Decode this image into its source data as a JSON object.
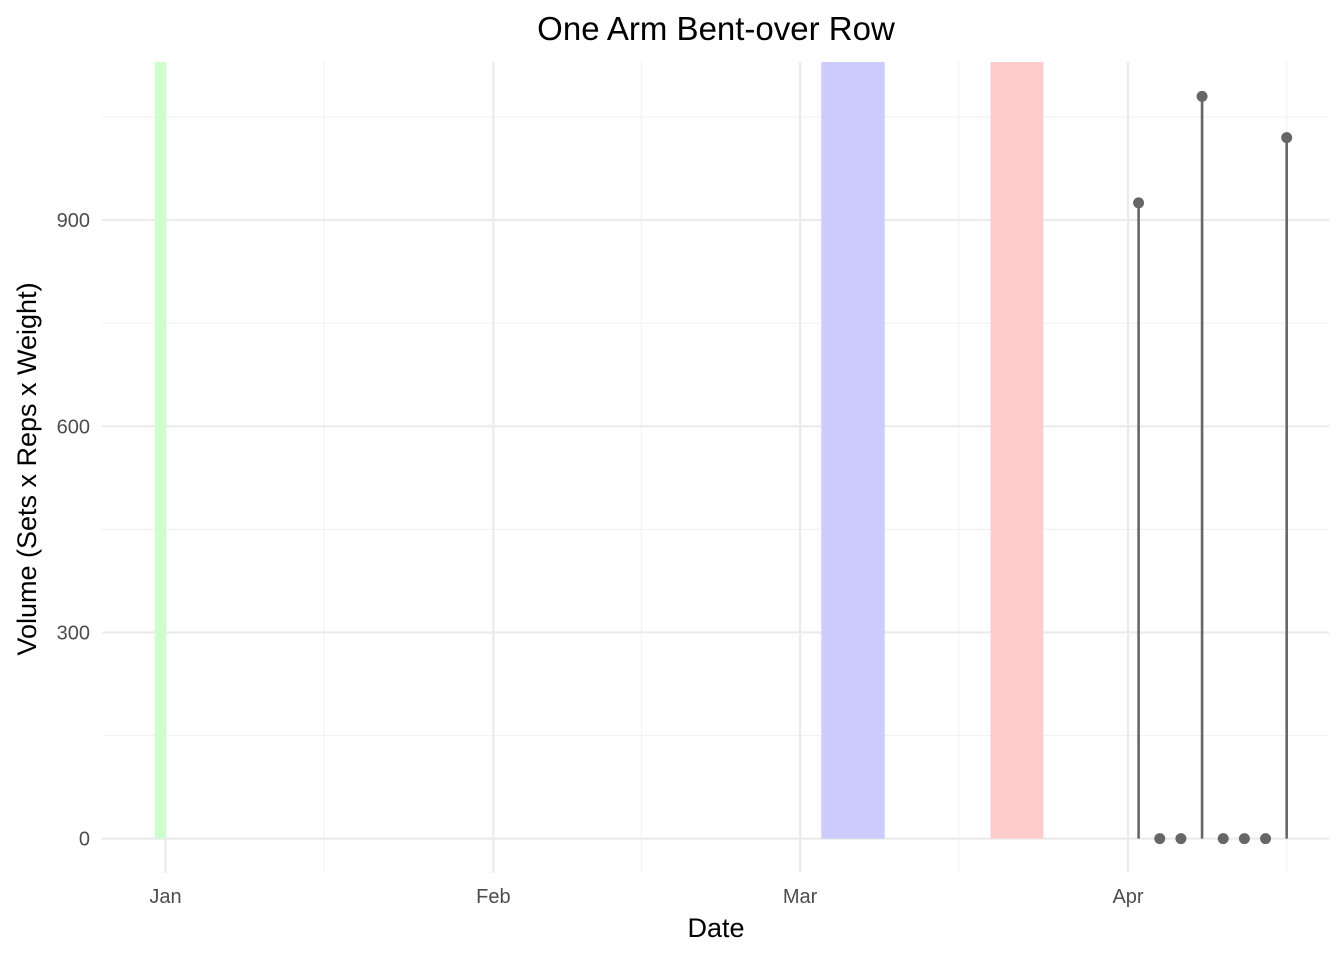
{
  "chart_data": {
    "type": "lollipop",
    "title": "One Arm Bent-over Row",
    "xlabel": "Date",
    "ylabel": "Volume (Sets x Reps x Weight)",
    "x_axis": {
      "type": "date",
      "range": [
        "2023-12-26",
        "2024-04-20"
      ],
      "ticks": [
        {
          "date": "2024-01-01",
          "label": "Jan"
        },
        {
          "date": "2024-02-01",
          "label": "Feb"
        },
        {
          "date": "2024-03-01",
          "label": "Mar"
        },
        {
          "date": "2024-04-01",
          "label": "Apr"
        }
      ],
      "minor_ticks": [
        "2024-01-16",
        "2024-02-15",
        "2024-03-16",
        "2024-04-16"
      ]
    },
    "y_axis": {
      "range": [
        -50,
        1130
      ],
      "ticks": [
        0,
        300,
        600,
        900
      ],
      "minor_ticks": [
        150,
        450,
        750,
        1050
      ]
    },
    "grid": true,
    "shaded_periods": [
      {
        "start": "2023-12-31",
        "end": "2024-01-01",
        "color": "#ccffcc"
      },
      {
        "start": "2024-03-03",
        "end": "2024-03-09",
        "color": "#ccccff"
      },
      {
        "start": "2024-03-19",
        "end": "2024-03-24",
        "color": "#ffcccc"
      }
    ],
    "points": [
      {
        "x": "2024-04-02",
        "y": 925
      },
      {
        "x": "2024-04-04",
        "y": 0
      },
      {
        "x": "2024-04-06",
        "y": 0
      },
      {
        "x": "2024-04-08",
        "y": 1080
      },
      {
        "x": "2024-04-10",
        "y": 0
      },
      {
        "x": "2024-04-12",
        "y": 0
      },
      {
        "x": "2024-04-14",
        "y": 0
      },
      {
        "x": "2024-04-16",
        "y": 1020
      }
    ],
    "point_color": "#666666"
  }
}
